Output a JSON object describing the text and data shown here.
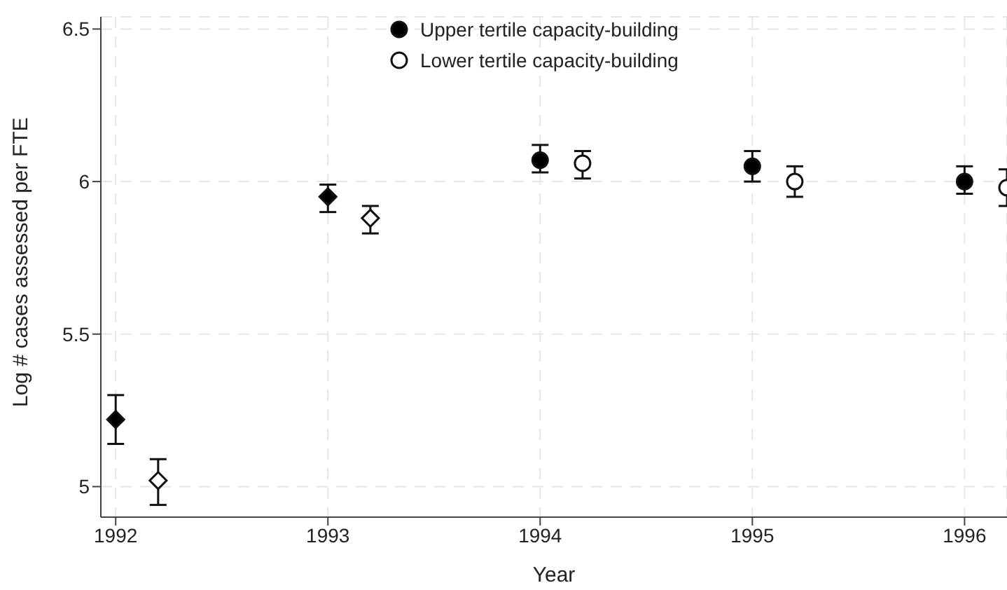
{
  "chart_data": {
    "type": "scatter",
    "xlabel": "Year",
    "ylabel": "Log # cases assessed per FTE",
    "xlim": [
      1991.93,
      1996.2
    ],
    "ylim": [
      4.9,
      6.54
    ],
    "xticks": [
      1992,
      1993,
      1994,
      1995,
      1996
    ],
    "yticks": [
      5,
      5.5,
      6,
      6.5
    ],
    "grid": true,
    "legend": "top",
    "series": [
      {
        "name": "Upper tertile capacity-building",
        "color": "#000000",
        "marker": "circle",
        "x": [
          1994,
          1995,
          1996
        ],
        "values": [
          6.07,
          6.05,
          6.0
        ],
        "errors": [
          [
            6.03,
            6.12
          ],
          [
            6.0,
            6.1
          ],
          [
            5.96,
            6.05
          ]
        ]
      },
      {
        "name": "Lower tertile capacity-building",
        "color": "#ffffff",
        "marker": "circle",
        "x": [
          1994.2,
          1995.2,
          1996.2
        ],
        "values": [
          6.06,
          6.0,
          5.98
        ],
        "errors": [
          [
            6.01,
            6.1
          ],
          [
            5.95,
            6.05
          ],
          [
            5.92,
            6.04
          ]
        ]
      },
      {
        "color": "#000000",
        "marker": "diamond",
        "x": [
          1992,
          1993
        ],
        "values": [
          5.22,
          5.95
        ],
        "errors": [
          [
            5.14,
            5.3
          ],
          [
            5.9,
            5.99
          ]
        ]
      },
      {
        "color": "#ffffff",
        "marker": "diamond",
        "x": [
          1992.2,
          1993.2
        ],
        "values": [
          5.02,
          5.88
        ],
        "errors": [
          [
            4.94,
            5.09
          ],
          [
            5.83,
            5.92
          ]
        ]
      }
    ]
  }
}
